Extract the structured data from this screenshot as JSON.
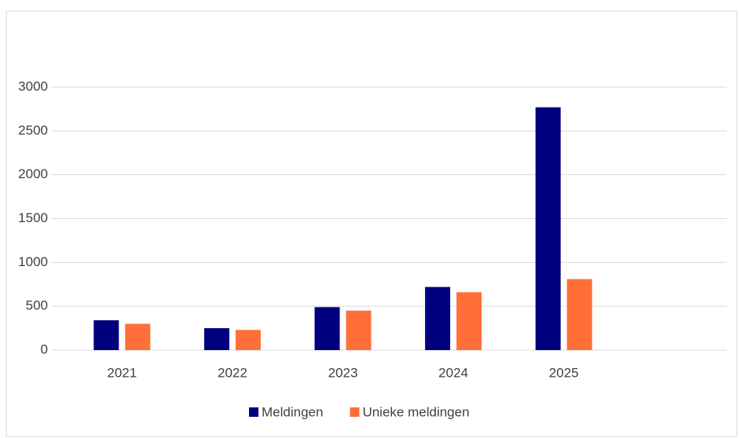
{
  "chart_data": {
    "type": "bar",
    "categories": [
      "2021",
      "2022",
      "2023",
      "2024",
      "2025"
    ],
    "series": [
      {
        "name": "Meldingen",
        "color": "#00007f",
        "values": [
          340,
          250,
          490,
          720,
          2770
        ]
      },
      {
        "name": "Unieke meldingen",
        "color": "#ff6f37",
        "values": [
          300,
          230,
          450,
          660,
          810
        ]
      }
    ],
    "ylim": [
      0,
      3000
    ],
    "yticks": [
      0,
      500,
      1000,
      1500,
      2000,
      2500,
      3000
    ],
    "grid": true,
    "legend": "bottom"
  }
}
